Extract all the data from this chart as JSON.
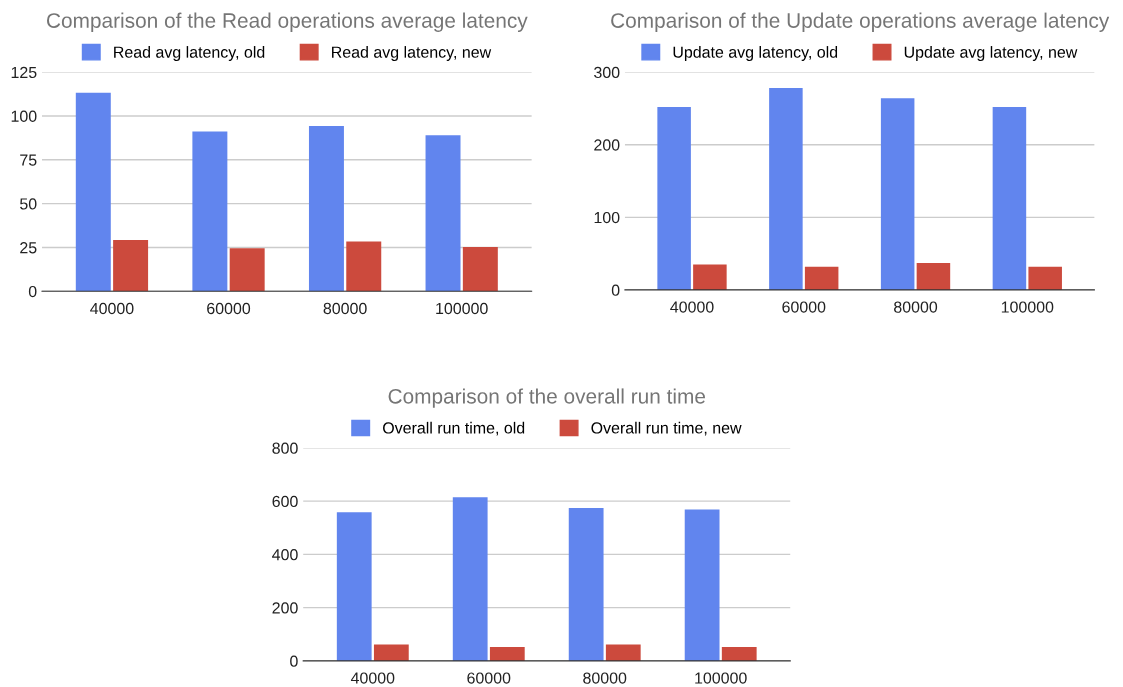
{
  "chart_data": [
    {
      "type": "bar",
      "title": "Comparison of the Read operations average latency",
      "categories": [
        "40000",
        "60000",
        "80000",
        "100000"
      ],
      "series": [
        {
          "name": "Read avg latency, old",
          "color": "#6185ee",
          "values": [
            113.3,
            91.2,
            94.3,
            89
          ]
        },
        {
          "name": "Read avg latency, new",
          "color": "#cc4a3d",
          "values": [
            29.2,
            24.5,
            28.4,
            25.3
          ]
        }
      ],
      "ylim": [
        0,
        125
      ],
      "yticks": [
        0,
        25,
        50,
        75,
        100,
        125
      ],
      "grid": "y",
      "legend": "top"
    },
    {
      "type": "bar",
      "title": "Comparison of the Update operations average latency",
      "categories": [
        "40000",
        "60000",
        "80000",
        "100000"
      ],
      "series": [
        {
          "name": "Update avg latency, old",
          "color": "#6185ee",
          "values": [
            252,
            278,
            264,
            252
          ]
        },
        {
          "name": "Update avg latency, new",
          "color": "#cc4a3d",
          "values": [
            35,
            32,
            37,
            32
          ]
        }
      ],
      "ylim": [
        0,
        300
      ],
      "yticks": [
        0,
        100,
        200,
        300
      ],
      "grid": "y",
      "legend": "top"
    },
    {
      "type": "bar",
      "title": "Comparison of the overall run time",
      "categories": [
        "40000",
        "60000",
        "80000",
        "100000"
      ],
      "series": [
        {
          "name": "Overall run time, old",
          "color": "#6185ee",
          "values": [
            558,
            615,
            574,
            569
          ]
        },
        {
          "name": "Overall run time, new",
          "color": "#cc4a3d",
          "values": [
            62,
            52,
            62,
            52
          ]
        }
      ],
      "ylim": [
        0,
        800
      ],
      "yticks": [
        0,
        200,
        400,
        600,
        800
      ],
      "grid": "y",
      "legend": "top"
    }
  ]
}
